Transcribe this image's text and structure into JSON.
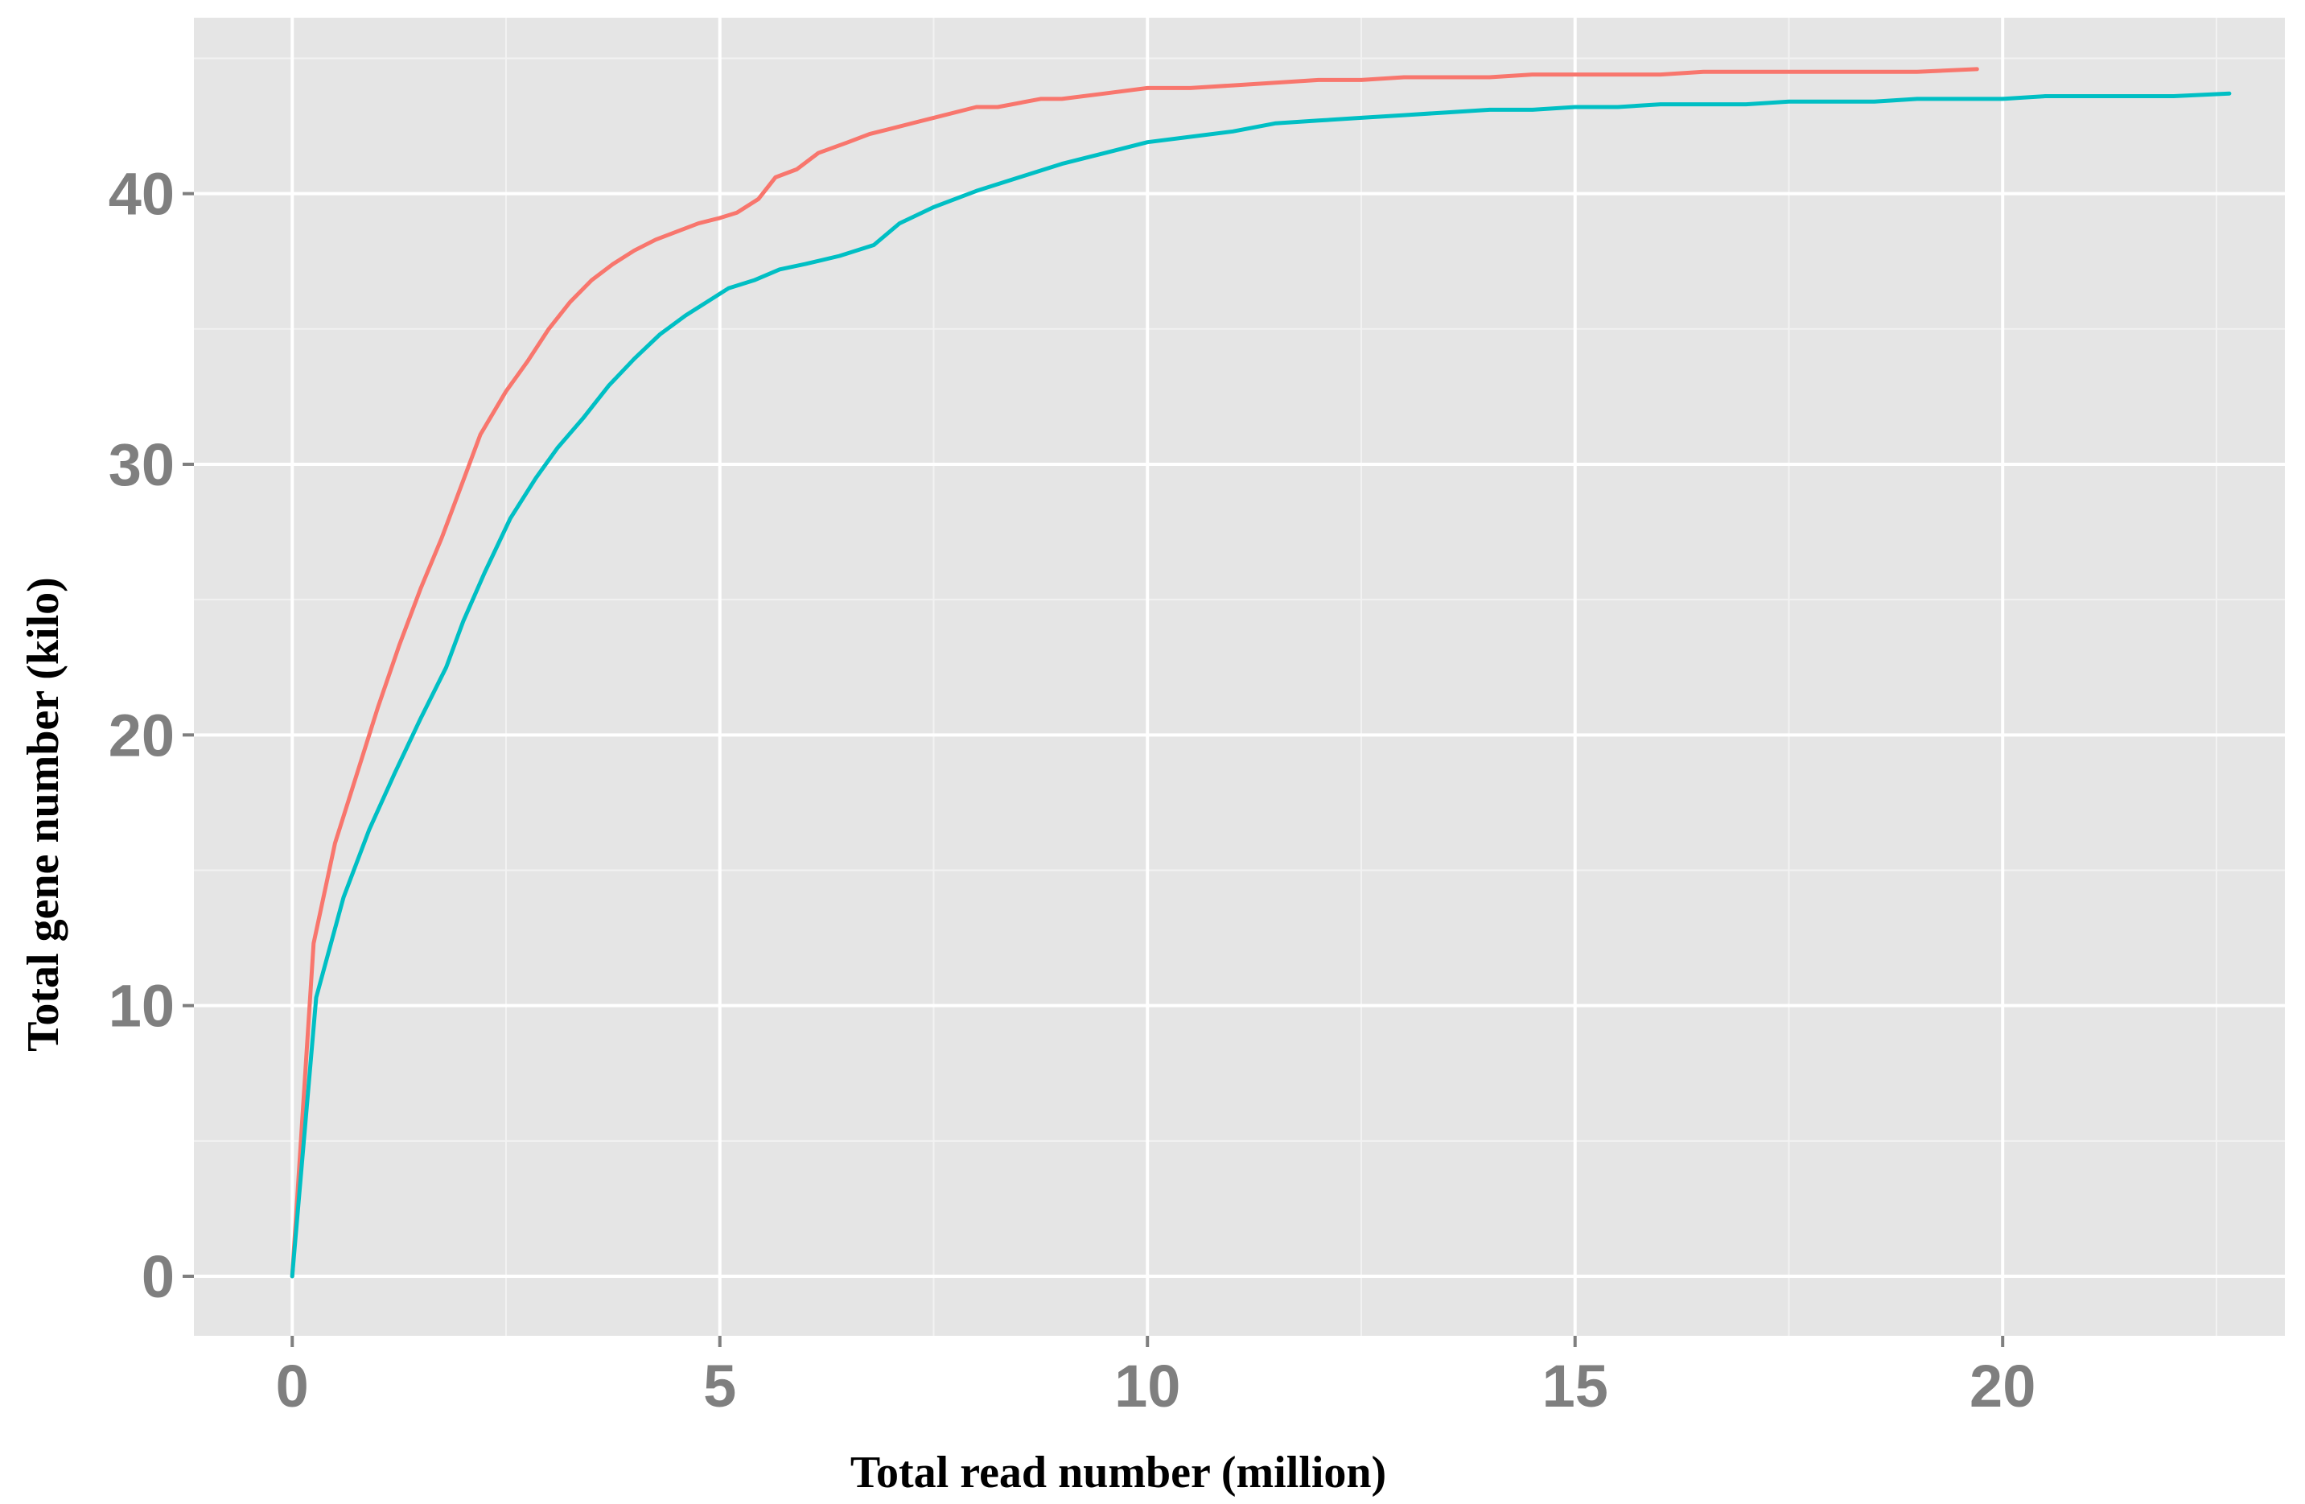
{
  "chart_data": {
    "type": "line",
    "title": "",
    "xlabel": "Total read number (million)",
    "ylabel": "Total gene number (kilo)",
    "xlim": [
      -1.15,
      23.3
    ],
    "ylim": [
      -2.2,
      46.5
    ],
    "x_ticks": [
      0,
      5,
      10,
      15,
      20
    ],
    "y_ticks": [
      0,
      10,
      20,
      30,
      40
    ],
    "x_tick_labels": [
      "0",
      "5",
      "10",
      "15",
      "20"
    ],
    "y_tick_labels": [
      "0",
      "10",
      "20",
      "30",
      "40"
    ],
    "grid": true,
    "legend": "none",
    "series": [
      {
        "color": "#f8766d",
        "x": [
          0,
          0.25,
          0.5,
          0.75,
          1.0,
          1.25,
          1.5,
          1.75,
          2.0,
          2.2,
          2.5,
          2.75,
          3.0,
          3.25,
          3.5,
          3.75,
          4.0,
          4.25,
          4.5,
          4.75,
          5.0,
          5.2,
          5.45,
          5.65,
          5.9,
          6.15,
          6.5,
          6.75,
          7.0,
          7.5,
          8.0,
          8.25,
          8.75,
          9.0,
          9.5,
          10.0,
          10.5,
          11.0,
          11.5,
          12.0,
          12.5,
          13.0,
          13.5,
          14.0,
          14.5,
          15.0,
          15.5,
          16.0,
          16.5,
          17.0,
          17.5,
          18.0,
          18.5,
          19.0,
          19.7
        ],
        "y": [
          0,
          12.3,
          16.0,
          18.5,
          21.0,
          23.3,
          25.4,
          27.3,
          29.4,
          31.1,
          32.7,
          33.8,
          35.0,
          36.0,
          36.8,
          37.4,
          37.9,
          38.3,
          38.6,
          38.9,
          39.1,
          39.3,
          39.8,
          40.6,
          40.9,
          41.5,
          41.9,
          42.2,
          42.4,
          42.8,
          43.2,
          43.2,
          43.5,
          43.5,
          43.7,
          43.9,
          43.9,
          44.0,
          44.1,
          44.2,
          44.2,
          44.3,
          44.3,
          44.3,
          44.4,
          44.4,
          44.4,
          44.4,
          44.5,
          44.5,
          44.5,
          44.5,
          44.5,
          44.5,
          44.6
        ]
      },
      {
        "color": "#00bfc4",
        "x": [
          0,
          0.28,
          0.6,
          0.9,
          1.2,
          1.5,
          1.8,
          2.0,
          2.25,
          2.55,
          2.85,
          3.1,
          3.4,
          3.7,
          4.0,
          4.3,
          4.6,
          4.9,
          5.1,
          5.4,
          5.7,
          6.0,
          6.4,
          6.8,
          7.1,
          7.5,
          8.0,
          8.5,
          9.0,
          9.5,
          10.0,
          10.5,
          11.0,
          11.5,
          12.0,
          12.5,
          13.0,
          13.5,
          14.0,
          14.5,
          15.0,
          15.5,
          16.0,
          16.5,
          17.0,
          17.5,
          18.0,
          18.5,
          19.0,
          19.5,
          20.0,
          20.5,
          21.0,
          21.5,
          22.0,
          22.65
        ],
        "y": [
          0,
          10.3,
          14.0,
          16.5,
          18.6,
          20.6,
          22.5,
          24.2,
          26.0,
          28.0,
          29.5,
          30.6,
          31.7,
          32.9,
          33.9,
          34.8,
          35.5,
          36.1,
          36.5,
          36.8,
          37.2,
          37.4,
          37.7,
          38.1,
          38.9,
          39.5,
          40.1,
          40.6,
          41.1,
          41.5,
          41.9,
          42.1,
          42.3,
          42.6,
          42.7,
          42.8,
          42.9,
          43.0,
          43.1,
          43.1,
          43.2,
          43.2,
          43.3,
          43.3,
          43.3,
          43.4,
          43.4,
          43.4,
          43.5,
          43.5,
          43.5,
          43.6,
          43.6,
          43.6,
          43.6,
          43.7
        ]
      }
    ]
  }
}
